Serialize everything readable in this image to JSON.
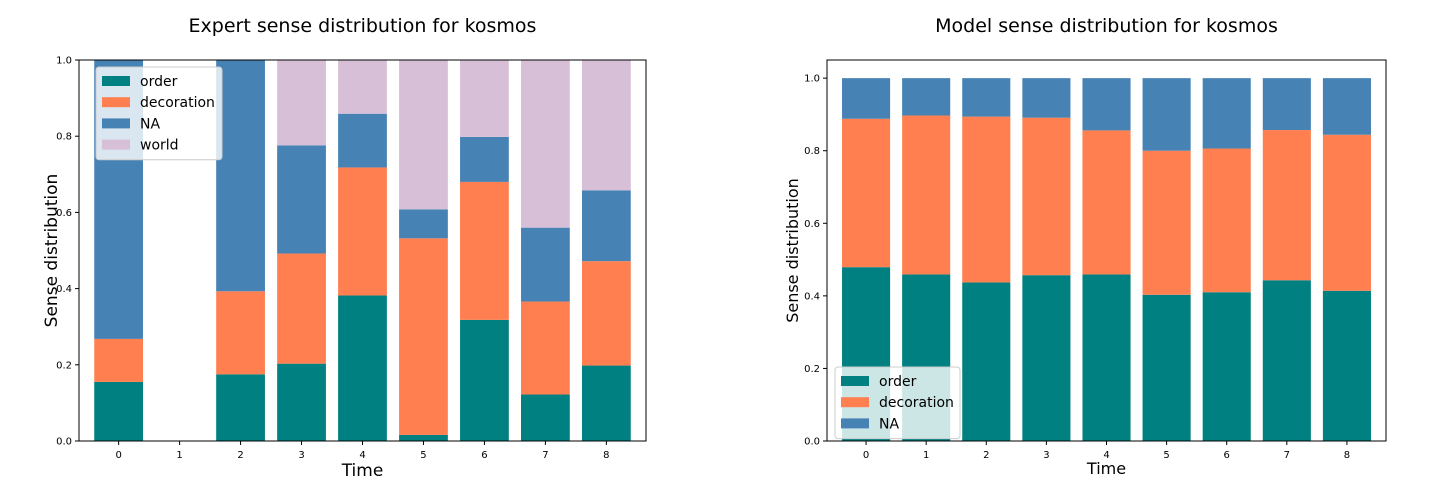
{
  "chart_data": [
    {
      "type": "bar",
      "stacked": true,
      "title": "Expert sense distribution for kosmos",
      "xlabel": "Time",
      "ylabel": "Sense distribution",
      "categories": [
        "0",
        "1",
        "2",
        "3",
        "4",
        "5",
        "6",
        "7",
        "8"
      ],
      "ylim": [
        0,
        1.0
      ],
      "yticks": [
        "0.0",
        "0.2",
        "0.4",
        "0.6",
        "0.8",
        "1.0"
      ],
      "legend_position": "upper-left",
      "series": [
        {
          "name": "order",
          "color": "#008080",
          "values": [
            0.155,
            0,
            0.175,
            0.203,
            0.382,
            0.016,
            0.318,
            0.122,
            0.198
          ]
        },
        {
          "name": "decoration",
          "color": "#ff7f50",
          "values": [
            0.113,
            0,
            0.218,
            0.289,
            0.336,
            0.516,
            0.362,
            0.244,
            0.274
          ]
        },
        {
          "name": "NA",
          "color": "#4682b4",
          "values": [
            0.732,
            0,
            0.607,
            0.284,
            0.141,
            0.076,
            0.118,
            0.194,
            0.186
          ]
        },
        {
          "name": "world",
          "color": "#d8bfd8",
          "values": [
            0,
            0,
            0,
            0.224,
            0.141,
            0.392,
            0.202,
            0.44,
            0.342
          ]
        }
      ]
    },
    {
      "type": "bar",
      "stacked": true,
      "title": "Model sense distribution for kosmos",
      "xlabel": "Time",
      "ylabel": "Sense distribution",
      "categories": [
        "0",
        "1",
        "2",
        "3",
        "4",
        "5",
        "6",
        "7",
        "8"
      ],
      "ylim": [
        0,
        1.05
      ],
      "yticks": [
        "0.0",
        "0.2",
        "0.4",
        "0.6",
        "0.8",
        "1.0"
      ],
      "legend_position": "lower-left",
      "series": [
        {
          "name": "order",
          "color": "#008080",
          "values": [
            0.479,
            0.459,
            0.437,
            0.457,
            0.459,
            0.403,
            0.41,
            0.443,
            0.414
          ]
        },
        {
          "name": "decoration",
          "color": "#ff7f50",
          "values": [
            0.409,
            0.438,
            0.457,
            0.434,
            0.397,
            0.397,
            0.396,
            0.414,
            0.43
          ]
        },
        {
          "name": "NA",
          "color": "#4682b4",
          "values": [
            0.112,
            0.103,
            0.106,
            0.109,
            0.144,
            0.2,
            0.194,
            0.143,
            0.156
          ]
        }
      ]
    }
  ]
}
